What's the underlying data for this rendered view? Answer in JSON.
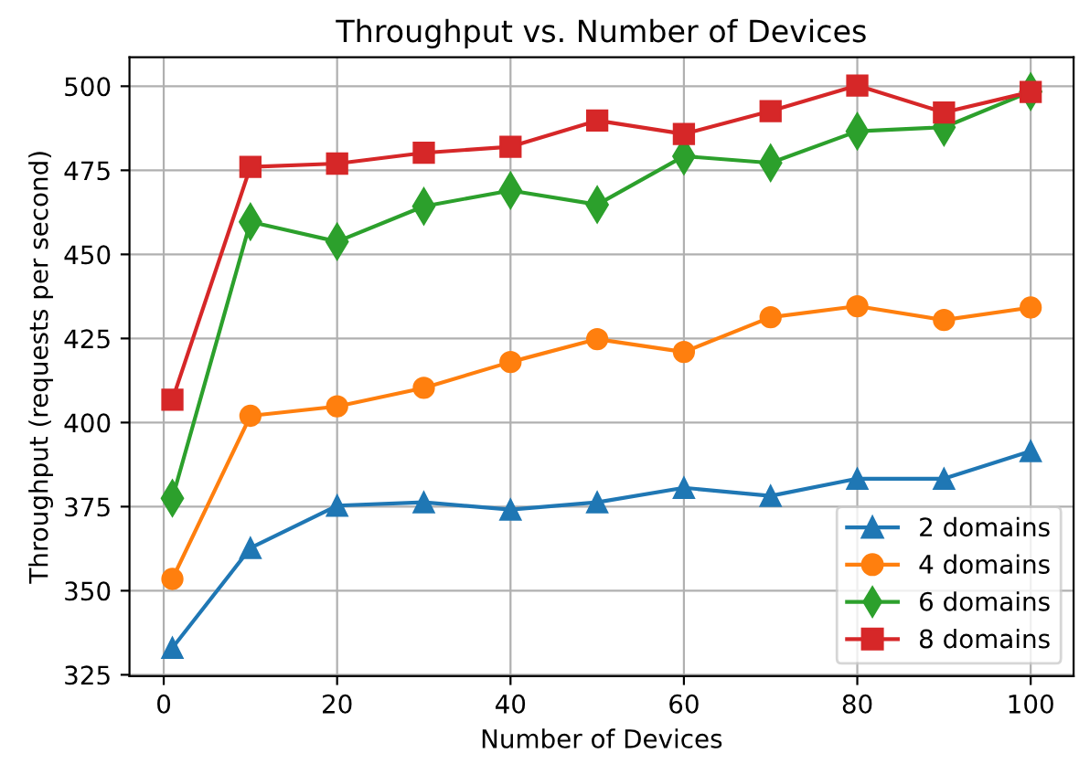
{
  "chart_data": {
    "type": "line",
    "title": "Throughput vs. Number of Devices",
    "xlabel": "Number of Devices",
    "ylabel": "Throughput (requests per second)",
    "x": [
      1,
      10,
      20,
      30,
      40,
      50,
      60,
      70,
      80,
      90,
      100
    ],
    "series": [
      {
        "name": "2 domains",
        "color": "#1f77b4",
        "marker": "triangle",
        "values": [
          333,
          362.7,
          375.3,
          376.3,
          374.1,
          376.3,
          380.6,
          378.2,
          383.3,
          383.3,
          391.5
        ]
      },
      {
        "name": "4 domains",
        "color": "#ff7f0e",
        "marker": "circle",
        "values": [
          353.5,
          402,
          404.8,
          410.3,
          418,
          424.8,
          421,
          431.3,
          434.6,
          430.5,
          434.2
        ]
      },
      {
        "name": "6 domains",
        "color": "#2ca02c",
        "marker": "diamond",
        "values": [
          377.5,
          459.7,
          453.8,
          464.3,
          469,
          464.8,
          479.2,
          477.2,
          486.6,
          487.8,
          498.4
        ]
      },
      {
        "name": "8 domains",
        "color": "#d62728",
        "marker": "square",
        "values": [
          406.8,
          476,
          477,
          480.2,
          482,
          489.8,
          485.8,
          492.6,
          500.2,
          492.2,
          498.3
        ]
      }
    ],
    "xlim": [
      -3.95,
      104.95
    ],
    "xticks": [
      0,
      20,
      40,
      60,
      80,
      100
    ],
    "ylim": [
      324.6,
      508.6
    ],
    "yticks": [
      325,
      350,
      375,
      400,
      425,
      450,
      475,
      500
    ],
    "grid": true,
    "legend": "bottom right",
    "line_style": "solid"
  }
}
